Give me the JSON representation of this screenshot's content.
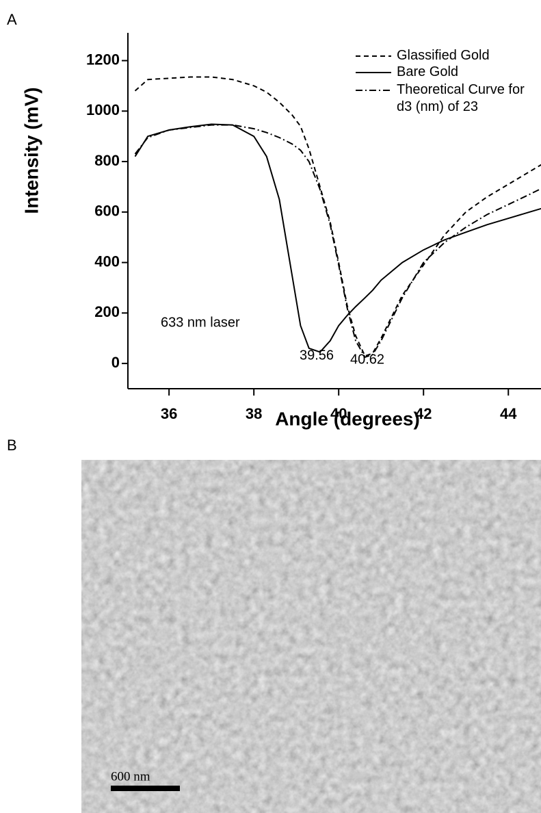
{
  "panel_labels": [
    "A",
    "B"
  ],
  "chart_data": {
    "type": "line",
    "x_label": "Angle (degrees)",
    "y_label": "Intensity (mV)",
    "x": [
      35.2,
      35.5,
      36,
      36.5,
      37,
      37.5,
      38,
      38.3,
      38.6,
      38.9,
      39.1,
      39.3,
      39.56,
      39.8,
      40,
      40.2,
      40.4,
      40.62,
      40.8,
      41,
      41.5,
      42,
      42.5,
      43,
      43.5,
      44,
      44.5,
      44.8
    ],
    "series": [
      {
        "name": "Glassified Gold",
        "color": "#000000",
        "dash": "dashed",
        "values": [
          1080,
          1125,
          1130,
          1135,
          1135,
          1125,
          1100,
          1075,
          1035,
          985,
          940,
          850,
          700,
          560,
          400,
          230,
          110,
          30,
          40,
          100,
          270,
          390,
          510,
          600,
          660,
          710,
          760,
          790
        ]
      },
      {
        "name": "Bare Gold",
        "color": "#000000",
        "dash": "solid",
        "values": [
          820,
          900,
          925,
          938,
          948,
          945,
          900,
          820,
          650,
          350,
          150,
          60,
          45,
          90,
          150,
          190,
          225,
          260,
          290,
          330,
          400,
          450,
          490,
          520,
          550,
          575,
          600,
          615
        ]
      },
      {
        "name": "Theoretical Curve for d3 (nm) of 23",
        "color": "#000000",
        "dash": "dashdot",
        "values": [
          830,
          895,
          925,
          935,
          945,
          945,
          930,
          915,
          895,
          870,
          845,
          800,
          690,
          550,
          390,
          220,
          90,
          25,
          35,
          90,
          260,
          400,
          480,
          540,
          590,
          630,
          670,
          695
        ]
      }
    ],
    "annotations": [
      "633 nm laser",
      "39.56",
      "40.62"
    ],
    "xlim": [
      35.03,
      44.77
    ],
    "ylim": [
      -100,
      1310
    ],
    "xticks": [
      36,
      38,
      40,
      42,
      44
    ],
    "yticks": [
      0,
      200,
      400,
      600,
      800,
      1000,
      1200
    ],
    "grid": false,
    "legend": "top-right"
  },
  "image": {
    "scale_bar_label": "600 nm"
  }
}
